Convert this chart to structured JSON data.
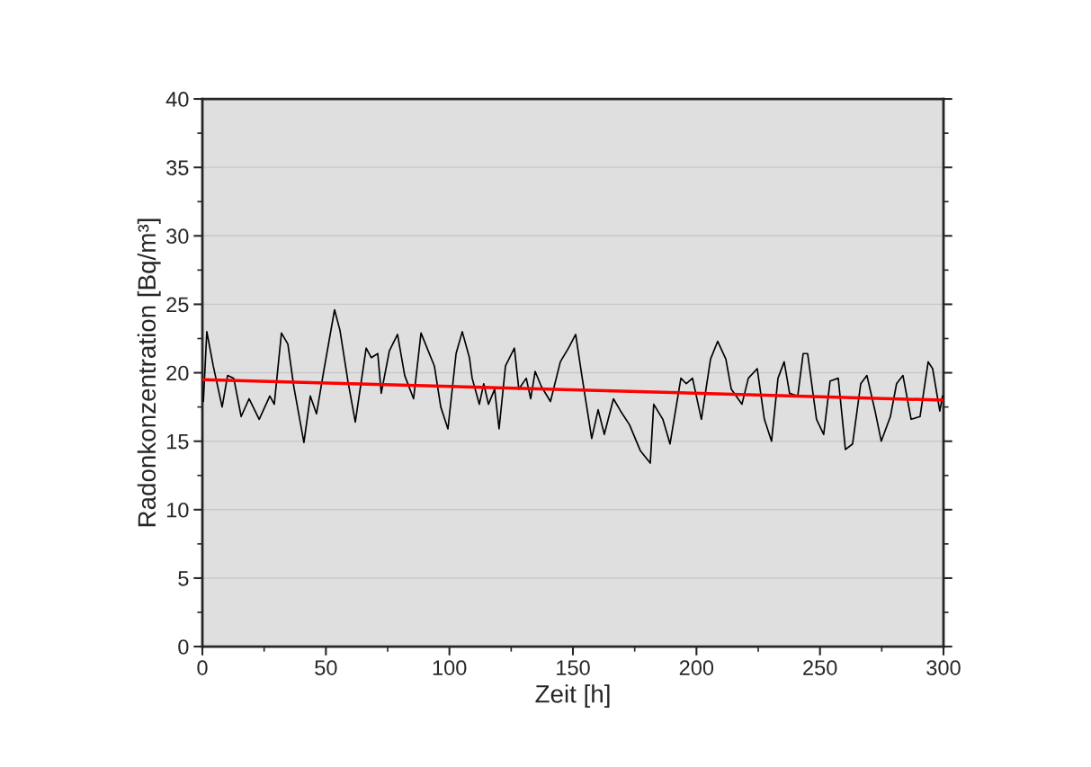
{
  "chart_data": {
    "type": "line",
    "xlabel": "Zeit [h]",
    "ylabel": "Radonkonzentration [Bq/m³]",
    "xlim": [
      0,
      300
    ],
    "xticks": [
      0,
      50,
      100,
      150,
      200,
      250,
      300
    ],
    "ylim": [
      0,
      40
    ],
    "yticks": [
      0,
      5,
      10,
      15,
      20,
      25,
      30,
      35,
      40
    ],
    "grid": "y",
    "series": [
      {
        "color": "#000000",
        "x": [
          0.4,
          1.8,
          4.4,
          8,
          10.2,
          12.7,
          15.7,
          18.9,
          23,
          27.3,
          29.1,
          32,
          34.6,
          37,
          41.1,
          43.7,
          46.2,
          49.1,
          53.5,
          55.7,
          58.9,
          61.9,
          66.3,
          68.4,
          71,
          72.4,
          75.7,
          79,
          81.9,
          85.5,
          88.5,
          93.9,
          96.5,
          99.4,
          102.7,
          105.2,
          108.1,
          109.2,
          112.1,
          113.9,
          115.8,
          118.3,
          120.1,
          122.7,
          126.3,
          128.1,
          131.1,
          132.9,
          134.7,
          137.2,
          140.9,
          144.9,
          148.2,
          151.1,
          153.6,
          157.6,
          160.2,
          162.7,
          166.4,
          169.3,
          172.9,
          177.3,
          181.3,
          182.7,
          186.4,
          189.3,
          193.7,
          195.9,
          198.4,
          202,
          205.7,
          208.6,
          211.9,
          214.1,
          218.4,
          221,
          224.6,
          227.5,
          230.4,
          233,
          235.5,
          237.7,
          241,
          243.2,
          245,
          248.6,
          251.5,
          254.1,
          257.4,
          260.3,
          263.2,
          266.5,
          269,
          272.3,
          274.8,
          278.5,
          281,
          283.6,
          286.9,
          290.5,
          293.8,
          295.6,
          298.5,
          299.6
        ],
        "values": [
          17.9,
          23.0,
          20.5,
          17.5,
          19.8,
          19.6,
          16.8,
          18.1,
          16.6,
          18.3,
          17.7,
          22.9,
          22.1,
          19.0,
          14.9,
          18.3,
          17.0,
          20.1,
          24.6,
          23.1,
          19.4,
          16.4,
          21.8,
          21.1,
          21.4,
          18.5,
          21.6,
          22.8,
          19.8,
          18.1,
          22.9,
          20.5,
          17.5,
          15.9,
          21.4,
          23.0,
          21.1,
          19.6,
          17.7,
          19.2,
          17.7,
          18.8,
          15.9,
          20.5,
          21.8,
          18.8,
          19.6,
          18.1,
          20.1,
          19.0,
          17.9,
          20.8,
          21.8,
          22.8,
          19.8,
          15.2,
          17.3,
          15.5,
          18.1,
          17.2,
          16.2,
          14.3,
          13.4,
          17.7,
          16.6,
          14.8,
          19.6,
          19.2,
          19.6,
          16.6,
          21.0,
          22.3,
          21.0,
          18.8,
          17.7,
          19.6,
          20.3,
          16.6,
          15.0,
          19.6,
          20.8,
          18.5,
          18.3,
          21.4,
          21.4,
          16.6,
          15.5,
          19.4,
          19.6,
          14.4,
          14.8,
          19.2,
          19.8,
          17.2,
          15.0,
          16.8,
          19.2,
          19.8,
          16.6,
          16.8,
          20.8,
          20.3,
          17.2,
          18.3
        ]
      },
      {
        "type": "line",
        "color": "#ff0000",
        "x": [
          0,
          300
        ],
        "values": [
          19.5,
          18.0
        ]
      }
    ]
  }
}
